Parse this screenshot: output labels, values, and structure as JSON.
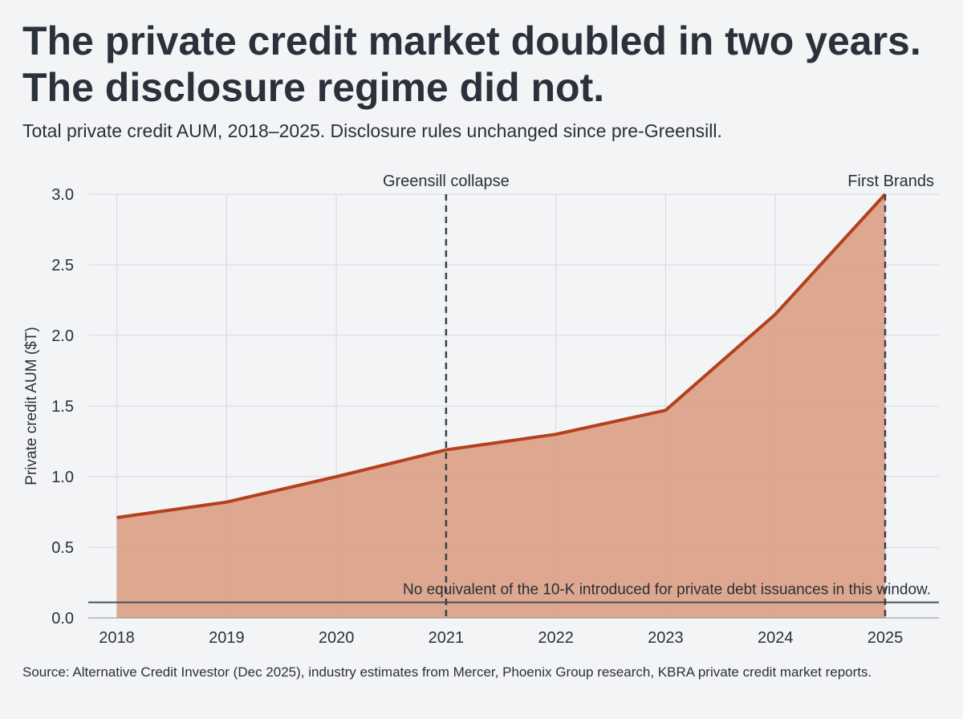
{
  "chart_data": {
    "type": "area",
    "title": "The private credit market doubled in two years. The disclosure regime did not.",
    "subtitle": "Total private credit AUM, 2018–2025. Disclosure rules unchanged since pre-Greensill.",
    "source": "Source: Alternative Credit Investor (Dec 2025), industry estimates from Mercer, Phoenix Group research, KBRA private credit market reports.",
    "y_label": "Private credit AUM ($T)",
    "x": [
      2018,
      2019,
      2020,
      2021,
      2022,
      2023,
      2024,
      2025
    ],
    "values": [
      0.71,
      0.82,
      1.0,
      1.19,
      1.3,
      1.47,
      2.15,
      3.0
    ],
    "color": "#b5401d",
    "fill_color": "#dba389",
    "xlim": [
      2017.74,
      2025.49
    ],
    "ylim": [
      0,
      3.0
    ],
    "xticks": [
      2018,
      2019,
      2020,
      2021,
      2022,
      2023,
      2024,
      2025
    ],
    "yticks": [
      {
        "value": 0,
        "label": "0.0"
      },
      0.5,
      {
        "value": 1,
        "label": "1.0"
      },
      1.5,
      {
        "value": 2,
        "label": "2.0"
      },
      2.5,
      {
        "value": 3,
        "label": "3.0"
      }
    ],
    "grid": true,
    "vlines": [
      {
        "x": 2021,
        "label": "Greensill collapse"
      },
      {
        "x": 2025,
        "label": "First Brands"
      }
    ],
    "hline": {
      "y": 0.11,
      "label": "No equivalent of the 10-K introduced for private debt issuances in this window."
    }
  }
}
